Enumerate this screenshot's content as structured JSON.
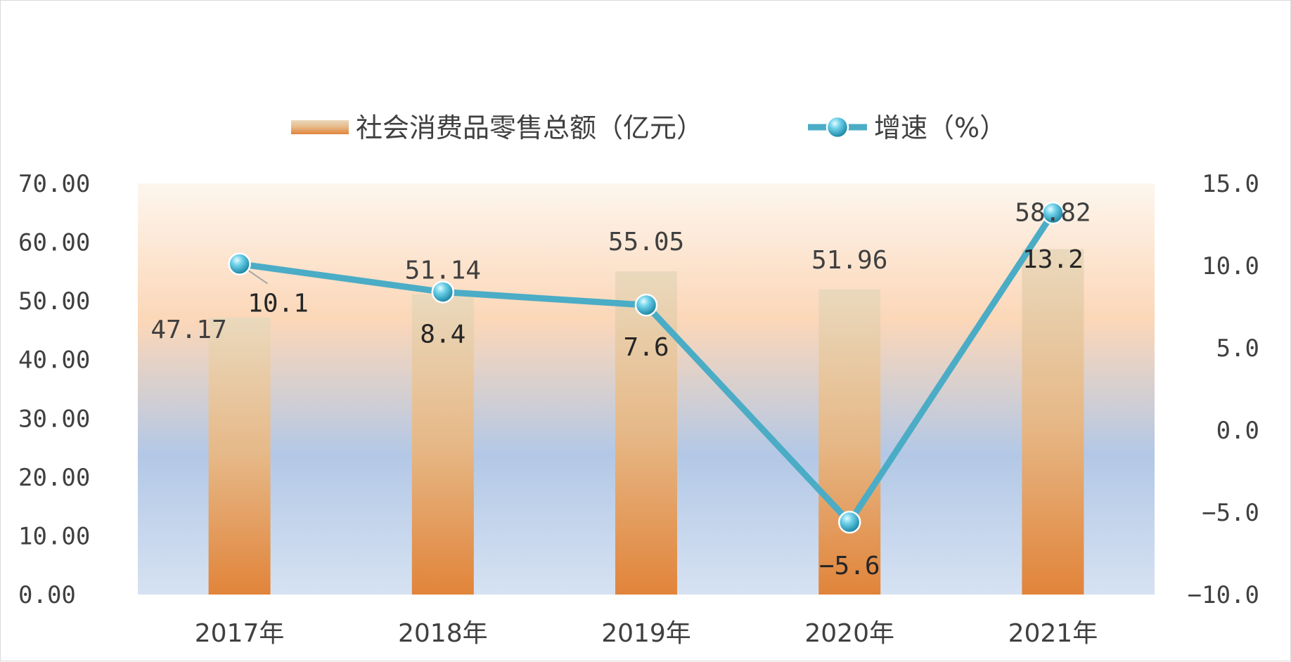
{
  "chart_data": {
    "type": "bar",
    "categories": [
      "2017年",
      "2018年",
      "2019年",
      "2020年",
      "2021年"
    ],
    "series": [
      {
        "name": "社会消费品零售总额（亿元）",
        "type": "bar",
        "axis": "left",
        "values": [
          47.17,
          51.14,
          55.05,
          51.96,
          58.82
        ],
        "labels": [
          "47.17",
          "51.14",
          "55.05",
          "51.96",
          "58.82"
        ]
      },
      {
        "name": "增速（%）",
        "type": "line",
        "axis": "right",
        "values": [
          10.1,
          8.4,
          7.6,
          -5.6,
          13.2
        ],
        "labels": [
          "10.1",
          "8.4",
          "7.6",
          "−5.6",
          "13.2"
        ]
      }
    ],
    "y_left": {
      "min": 0,
      "max": 70,
      "step": 10,
      "ticks": [
        "0.00",
        "10.00",
        "20.00",
        "30.00",
        "40.00",
        "50.00",
        "60.00",
        "70.00"
      ]
    },
    "y_right": {
      "min": -10,
      "max": 15,
      "step": 5,
      "ticks": [
        "−10.0",
        "−5.0",
        "0.0",
        "5.0",
        "10.0",
        "15.0"
      ]
    },
    "legend_position": "top",
    "grid": false,
    "colors": {
      "bar_top": "#e8d8bc",
      "bar_bottom": "#e2853a",
      "line": "#4bacc6",
      "marker_light": "#b8ecf7",
      "marker_dark": "#1c8fb0",
      "plot_bg_top": "#fdf3ea",
      "plot_bg_mid": "#fcd9bd",
      "plot_bg_blue": "#b4c8e6"
    }
  }
}
